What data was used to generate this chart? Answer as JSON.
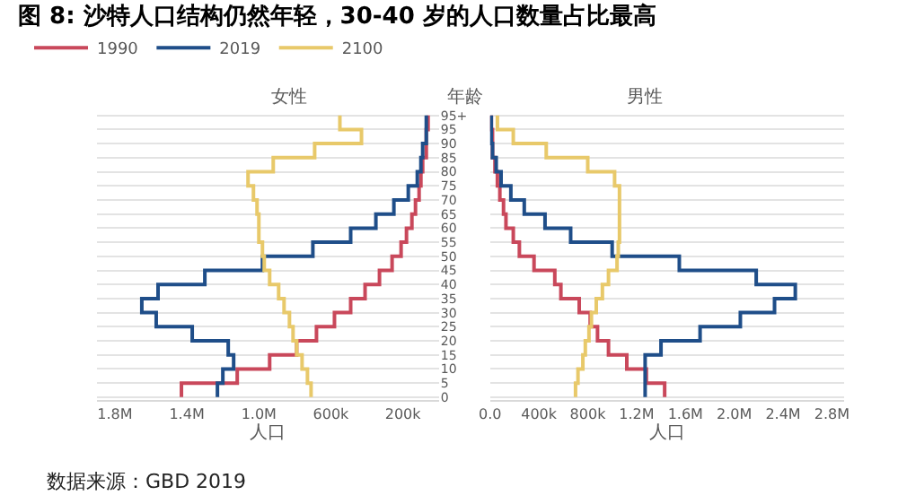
{
  "chart_data": [
    {
      "type": "step",
      "orientation": "horizontal",
      "title": "图 8: 沙特人口结构仍然年轻，30-40 岁的人口数量占比最高",
      "subtitle": "女性",
      "xlabel": "人口",
      "ylabel": "年龄",
      "x": [
        0,
        5,
        10,
        15,
        20,
        25,
        30,
        35,
        40,
        45,
        50,
        55,
        60,
        65,
        70,
        75,
        80,
        85,
        90,
        95,
        100
      ],
      "xlim": [
        1900000,
        0
      ],
      "xticks": [
        {
          "value": 1800000,
          "label": "1.8M"
        },
        {
          "value": 1400000,
          "label": "1.4M"
        },
        {
          "value": 1000000,
          "label": "1.0M"
        },
        {
          "value": 600000,
          "label": "600k"
        },
        {
          "value": 200000,
          "label": "200k"
        }
      ],
      "ylim": [
        -1,
        101.5
      ],
      "yticks": [
        0,
        5,
        10,
        15,
        20,
        25,
        30,
        35,
        40,
        45,
        50,
        55,
        60,
        65,
        70,
        75,
        80,
        85,
        90,
        95,
        {
          "value": 100,
          "label": "95+"
        }
      ],
      "grid": "y",
      "legend": "top left",
      "annotations": [
        "数据来源：GBD 2019"
      ],
      "series": [
        {
          "name": "1990",
          "color": "#c9485b",
          "values": [
            1430000,
            1120000,
            940000,
            790000,
            680000,
            580000,
            490000,
            410000,
            330000,
            260000,
            210000,
            180000,
            150000,
            130000,
            110000,
            100000,
            90000,
            70000,
            70000,
            60000,
            60000
          ]
        },
        {
          "name": "2019",
          "color": "#1f4e89",
          "values": [
            1230000,
            1200000,
            1140000,
            1170000,
            1370000,
            1570000,
            1650000,
            1560000,
            1300000,
            980000,
            700000,
            490000,
            350000,
            250000,
            170000,
            120000,
            100000,
            90000,
            70000,
            70000,
            70000
          ]
        },
        {
          "name": "2100",
          "color": "#e8c96a",
          "values": [
            710000,
            730000,
            760000,
            790000,
            810000,
            830000,
            860000,
            890000,
            940000,
            970000,
            980000,
            1000000,
            1000000,
            1010000,
            1030000,
            1060000,
            920000,
            690000,
            430000,
            550000,
            550000
          ]
        }
      ]
    },
    {
      "type": "step",
      "orientation": "horizontal",
      "title": "男性",
      "xlabel": "人口",
      "tick_labels": "x",
      "x": [
        0,
        5,
        10,
        15,
        20,
        25,
        30,
        35,
        40,
        45,
        50,
        55,
        60,
        65,
        70,
        75,
        80,
        85,
        90,
        95,
        100
      ],
      "xlim": [
        0,
        2900000
      ],
      "xticks": [
        {
          "value": 0,
          "label": "0.0"
        },
        {
          "value": 400000,
          "label": "400k"
        },
        {
          "value": 800000,
          "label": "800k"
        },
        {
          "value": 1200000,
          "label": "1.2M"
        },
        {
          "value": 1600000,
          "label": "1.6M"
        },
        {
          "value": 2000000,
          "label": "2.0M"
        },
        {
          "value": 2400000,
          "label": "2.4M"
        },
        {
          "value": 2800000,
          "label": "2.8M"
        }
      ],
      "ylim": [
        -1,
        101.5
      ],
      "yticks": [
        0,
        5,
        10,
        15,
        20,
        25,
        30,
        35,
        40,
        45,
        50,
        55,
        60,
        65,
        70,
        75,
        80,
        85,
        90,
        95,
        100
      ],
      "grid": "y",
      "series": [
        {
          "color": "#c9485b",
          "values": [
            1430000,
            1280000,
            1120000,
            970000,
            880000,
            820000,
            730000,
            580000,
            530000,
            360000,
            240000,
            190000,
            130000,
            110000,
            80000,
            60000,
            40000,
            20000,
            20000,
            10000,
            10000
          ]
        },
        {
          "color": "#1f4e89",
          "values": [
            1270000,
            1270000,
            1270000,
            1400000,
            1720000,
            2050000,
            2330000,
            2500000,
            2180000,
            1550000,
            1000000,
            660000,
            450000,
            280000,
            170000,
            90000,
            50000,
            20000,
            10000,
            10000,
            10000
          ]
        },
        {
          "color": "#e8c96a",
          "values": [
            700000,
            720000,
            760000,
            780000,
            810000,
            830000,
            870000,
            920000,
            970000,
            1040000,
            1050000,
            1060000,
            1060000,
            1060000,
            1060000,
            1020000,
            800000,
            460000,
            190000,
            60000,
            60000
          ]
        }
      ]
    }
  ]
}
